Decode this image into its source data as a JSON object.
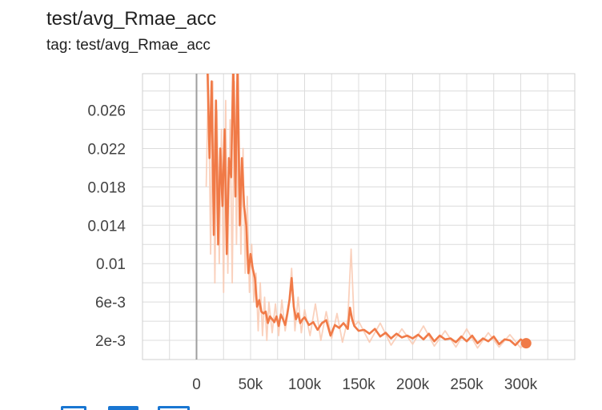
{
  "title": "test/avg_Rmae_acc",
  "tag_line": "tag: test/avg_Rmae_acc",
  "colors": {
    "line": "#f07a47",
    "raw": "#f9c9b2",
    "grid": "#dcdcdc",
    "axis": "#9e9e9e"
  },
  "icons": [
    "expand-icon",
    "data-download-icon",
    "fit-domain-icon"
  ],
  "chart_data": {
    "type": "line",
    "title": "",
    "xlabel": "",
    "ylabel": "",
    "xlim": [
      -50000,
      350000
    ],
    "ylim": [
      0,
      0.0298
    ],
    "x_ticks": [
      0,
      50000,
      100000,
      150000,
      200000,
      250000,
      300000
    ],
    "x_tick_labels": [
      "0",
      "50k",
      "100k",
      "150k",
      "200k",
      "250k",
      "300k"
    ],
    "y_ticks": [
      0.002,
      0.006,
      0.01,
      0.014,
      0.018,
      0.022,
      0.026
    ],
    "y_tick_labels": [
      "2e-3",
      "6e-3",
      "0.01",
      "0.014",
      "0.018",
      "0.022",
      "0.026"
    ],
    "grid": true,
    "series": [
      {
        "smoothed": true,
        "x": [
          10000,
          12000,
          14000,
          16000,
          18000,
          20000,
          22000,
          24000,
          26000,
          28000,
          30000,
          32000,
          34000,
          36000,
          38000,
          40000,
          42000,
          44000,
          46000,
          48000,
          50000,
          52000,
          54000,
          56000,
          58000,
          60000,
          62000,
          64000,
          66000,
          68000,
          70000,
          72000,
          74000,
          76000,
          78000,
          80000,
          82000,
          84000,
          86000,
          88000,
          90000,
          92000,
          94000,
          96000,
          98000,
          100000,
          104000,
          108000,
          112000,
          116000,
          120000,
          124000,
          128000,
          132000,
          136000,
          140000,
          142000,
          144000,
          146000,
          150000,
          155000,
          160000,
          165000,
          170000,
          175000,
          180000,
          185000,
          190000,
          195000,
          200000,
          205000,
          210000,
          215000,
          220000,
          225000,
          230000,
          235000,
          240000,
          245000,
          250000,
          255000,
          260000,
          265000,
          270000,
          275000,
          280000,
          285000,
          290000,
          295000,
          300000,
          305000
        ],
        "y": [
          0.031,
          0.021,
          0.029,
          0.013,
          0.027,
          0.012,
          0.022,
          0.016,
          0.024,
          0.011,
          0.021,
          0.019,
          0.031,
          0.017,
          0.031,
          0.014,
          0.021,
          0.016,
          0.014,
          0.009,
          0.011,
          0.0095,
          0.0085,
          0.0055,
          0.0062,
          0.005,
          0.0048,
          0.005,
          0.0038,
          0.0045,
          0.0042,
          0.0039,
          0.0045,
          0.0035,
          0.0047,
          0.0042,
          0.0036,
          0.0048,
          0.0062,
          0.0085,
          0.0055,
          0.0042,
          0.0048,
          0.0038,
          0.0042,
          0.0044,
          0.0036,
          0.0039,
          0.0031,
          0.0038,
          0.0041,
          0.0025,
          0.0036,
          0.0033,
          0.0038,
          0.0032,
          0.0054,
          0.0042,
          0.0035,
          0.003,
          0.0031,
          0.0027,
          0.0032,
          0.0024,
          0.0028,
          0.0022,
          0.0027,
          0.0023,
          0.0025,
          0.0022,
          0.0026,
          0.0021,
          0.0027,
          0.0019,
          0.0025,
          0.0021,
          0.0022,
          0.0018,
          0.0024,
          0.0019,
          0.0025,
          0.0017,
          0.0022,
          0.0019,
          0.0024,
          0.0016,
          0.0021,
          0.002,
          0.0015,
          0.0021,
          0.0017
        ]
      },
      {
        "smoothed": false,
        "x": [
          9000,
          11000,
          13000,
          15000,
          17000,
          19000,
          21000,
          23000,
          25000,
          27000,
          29000,
          31000,
          33000,
          35000,
          37000,
          39000,
          41000,
          43000,
          45000,
          47000,
          49000,
          51000,
          53000,
          55000,
          57000,
          59000,
          61000,
          63000,
          65000,
          67000,
          70000,
          73000,
          76000,
          79000,
          82000,
          85000,
          88000,
          91000,
          94000,
          97000,
          100000,
          105000,
          110000,
          115000,
          120000,
          125000,
          130000,
          135000,
          140000,
          143000,
          146000,
          150000,
          160000,
          170000,
          180000,
          190000,
          200000,
          210000,
          220000,
          230000,
          240000,
          250000,
          260000,
          270000,
          280000,
          290000,
          300000,
          305000
        ],
        "y": [
          0.018,
          0.03,
          0.011,
          0.029,
          0.008,
          0.026,
          0.01,
          0.024,
          0.007,
          0.027,
          0.009,
          0.025,
          0.008,
          0.029,
          0.012,
          0.026,
          0.011,
          0.022,
          0.009,
          0.017,
          0.007,
          0.012,
          0.006,
          0.009,
          0.003,
          0.008,
          0.0025,
          0.0065,
          0.002,
          0.006,
          0.0028,
          0.0058,
          0.0025,
          0.0062,
          0.003,
          0.0052,
          0.0095,
          0.003,
          0.0065,
          0.0028,
          0.0052,
          0.0025,
          0.0058,
          0.002,
          0.005,
          0.0022,
          0.0048,
          0.0018,
          0.0042,
          0.0115,
          0.0035,
          0.004,
          0.0018,
          0.0038,
          0.0015,
          0.0032,
          0.0016,
          0.0035,
          0.0014,
          0.003,
          0.0013,
          0.0032,
          0.0012,
          0.0028,
          0.0013,
          0.0026,
          0.0012,
          0.002
        ]
      }
    ],
    "last_point": {
      "x": 305000,
      "y": 0.0017
    }
  }
}
